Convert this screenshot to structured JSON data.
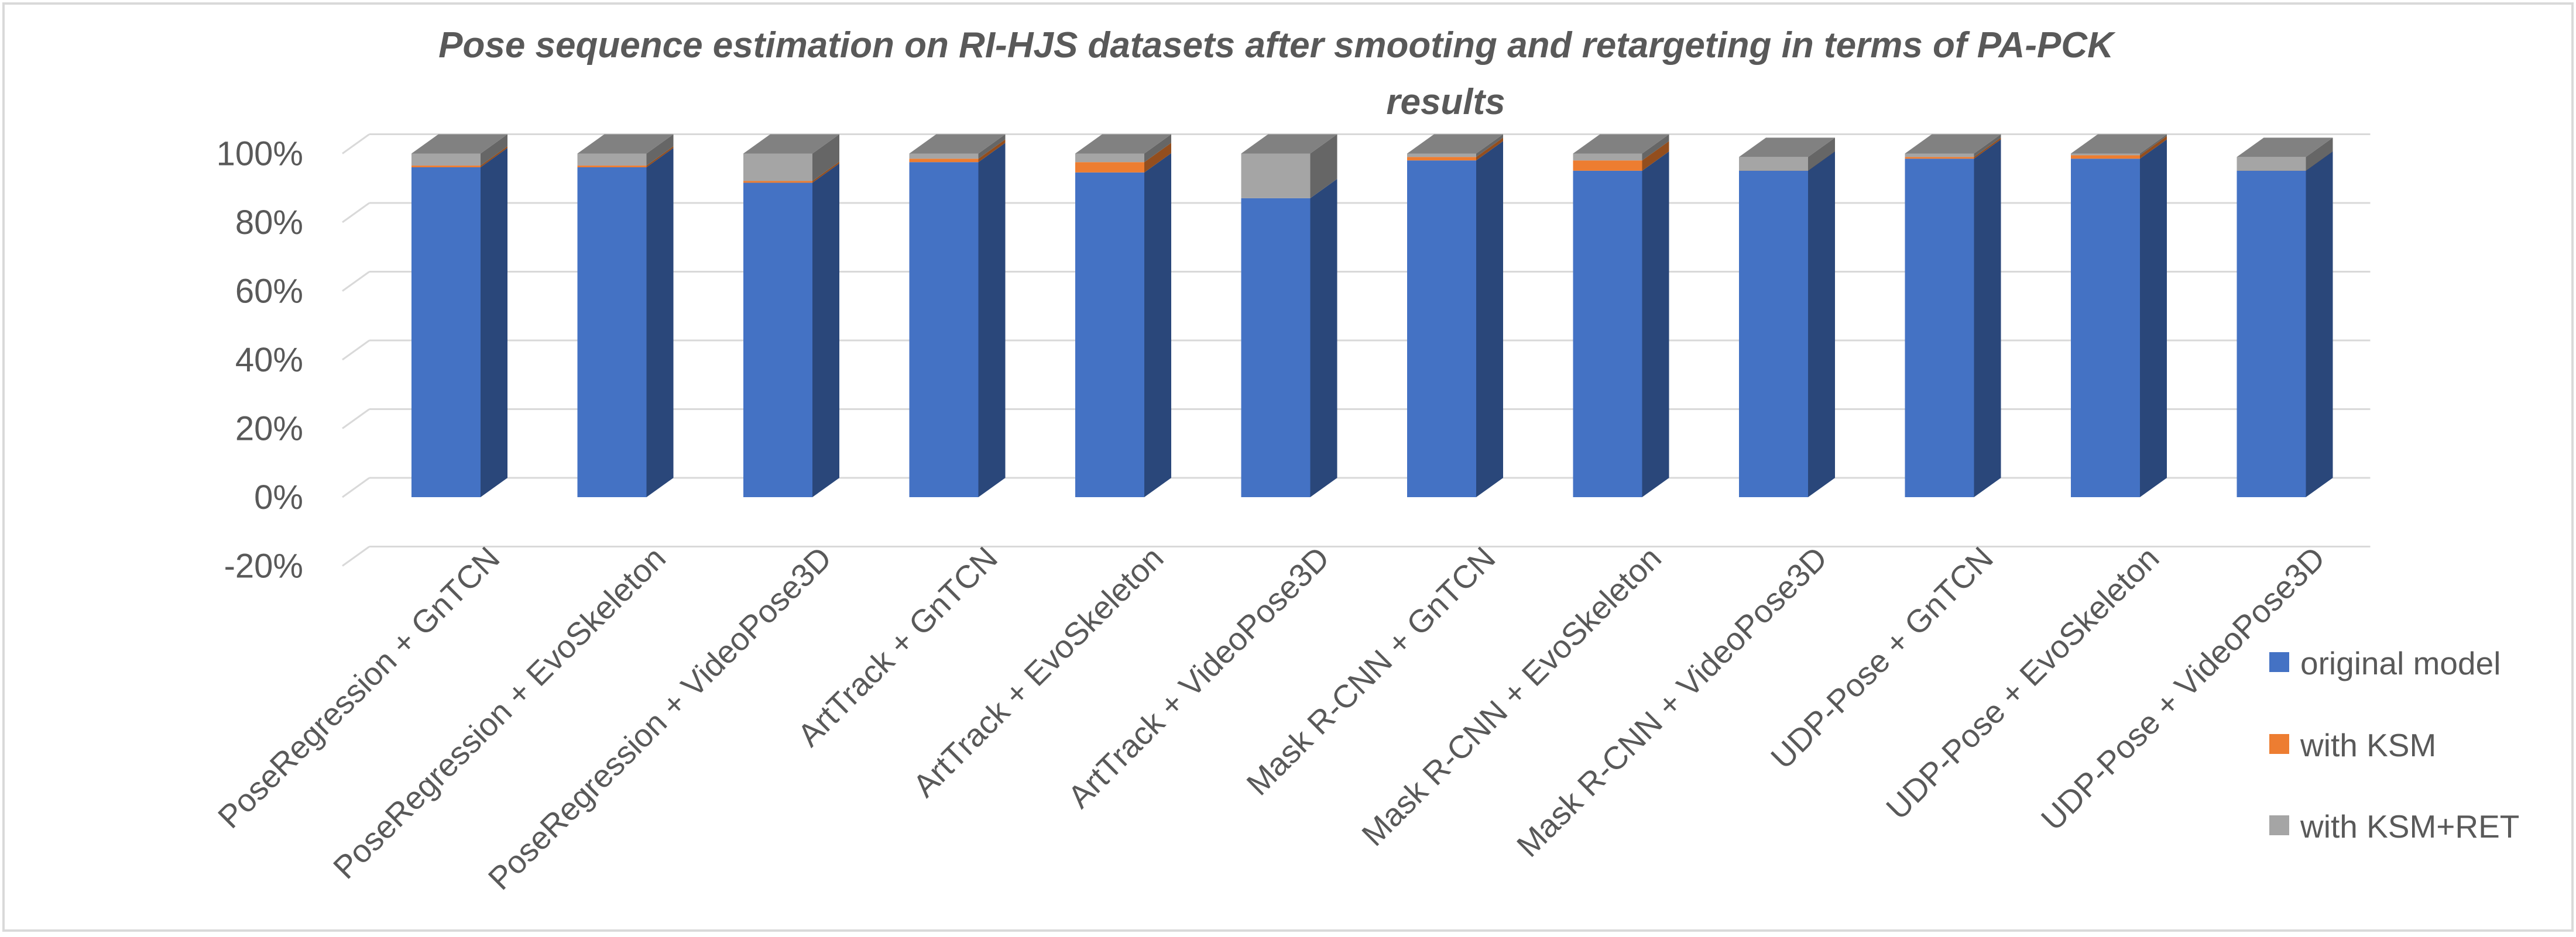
{
  "chart_data": {
    "type": "bar",
    "stacked": true,
    "style": "3d-stacked-column",
    "title": "Pose sequence estimation on RI-HJS datasets after smooting and retargeting in terms of PA-PCK results",
    "xlabel": "",
    "ylabel": "",
    "ylim": [
      -0.2,
      1.0
    ],
    "y_ticks": [
      "100%",
      "80%",
      "60%",
      "40%",
      "20%",
      "0%",
      "-20%"
    ],
    "y_tick_values": [
      1.0,
      0.8,
      0.6,
      0.4,
      0.2,
      0.0,
      -0.2
    ],
    "grid": true,
    "legend_position": "right",
    "categories": [
      "PoseRegression + GnTCN",
      "PoseRegression + EvoSkeleton",
      "PoseRegression + VideoPose3D",
      "ArtTrack + GnTCN",
      "ArtTrack + EvoSkeleton",
      "ArtTrack + VideoPose3D",
      "Mask R-CNN + GnTCN",
      "Mask R-CNN + EvoSkeleton",
      "Mask R-CNN + VideoPose3D",
      "UDP-Pose + GnTCN",
      "UDP-Pose + EvoSkeleton",
      "UDP-Pose + VideoPose3D"
    ],
    "series": [
      {
        "name": "original model",
        "color": "#4472C4",
        "values": [
          0.96,
          0.96,
          0.915,
          0.975,
          0.945,
          0.87,
          0.98,
          0.95,
          0.955,
          0.985,
          0.985,
          0.955
        ]
      },
      {
        "name": " with KSM",
        "color": "#ED7D31",
        "values": [
          0.005,
          0.005,
          0.005,
          0.01,
          0.03,
          0.0,
          0.01,
          0.03,
          -0.005,
          0.005,
          0.01,
          -0.005
        ]
      },
      {
        "name": "with  KSM+RET",
        "color": "#A5A5A5",
        "values": [
          0.035,
          0.035,
          0.08,
          0.015,
          0.025,
          0.13,
          0.01,
          0.02,
          0.04,
          0.01,
          0.005,
          0.04
        ]
      }
    ]
  }
}
